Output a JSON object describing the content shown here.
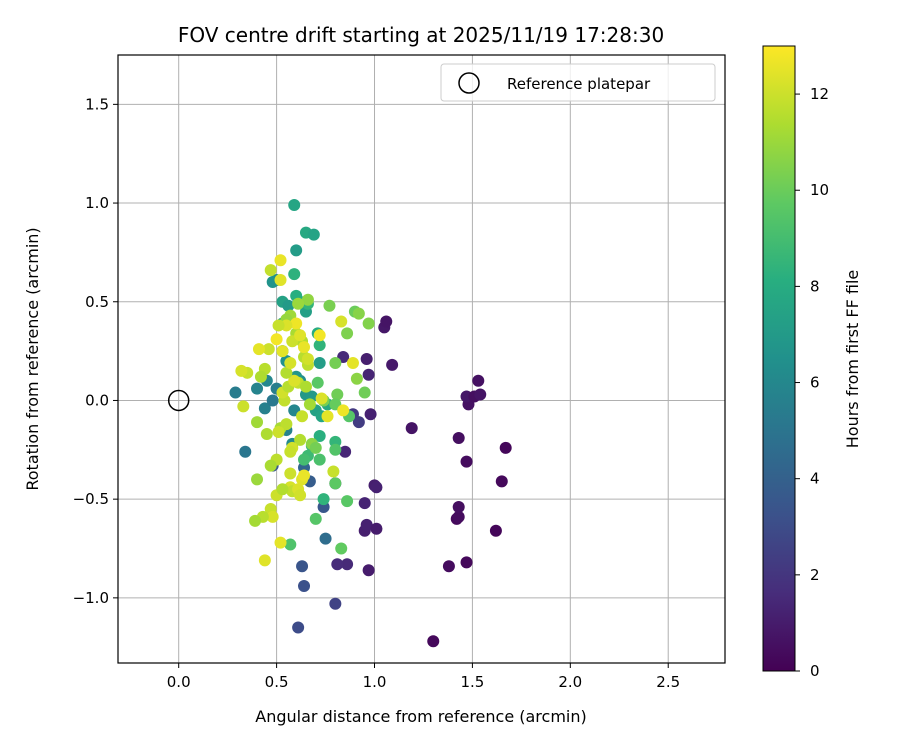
{
  "chart_data": {
    "type": "scatter",
    "title": "FOV centre drift starting at 2025/11/19 17:28:30",
    "xlabel": "Angular distance from reference (arcmin)",
    "ylabel": "Rotation from reference (arcmin)",
    "xlim": [
      -0.31,
      2.79
    ],
    "ylim": [
      -1.33,
      1.75
    ],
    "xticks": [
      0.0,
      0.5,
      1.0,
      1.5,
      2.0,
      2.5
    ],
    "xtick_labels": [
      "0.0",
      "0.5",
      "1.0",
      "1.5",
      "2.0",
      "2.5"
    ],
    "yticks": [
      -1.0,
      -0.5,
      0.0,
      0.5,
      1.0,
      1.5
    ],
    "ytick_labels": [
      "−1.0",
      "−0.5",
      "0.0",
      "0.5",
      "1.0",
      "1.5"
    ],
    "grid": true,
    "legend": {
      "position": "top-right",
      "entries": [
        "Reference platepar"
      ]
    },
    "reference_point": {
      "x": 0.0,
      "y": 0.0,
      "label": "Reference platepar"
    },
    "colorbar": {
      "label": "Hours from first FF file",
      "range": [
        0,
        13
      ],
      "ticks": [
        0,
        2,
        4,
        6,
        8,
        10,
        12
      ],
      "tick_labels": [
        "0",
        "2",
        "4",
        "6",
        "8",
        "10",
        "12"
      ],
      "colormap": "viridis"
    },
    "points": [
      {
        "x": 1.3,
        "y": -1.22,
        "h": 0.3
      },
      {
        "x": 1.38,
        "y": -0.84,
        "h": 0.4
      },
      {
        "x": 1.47,
        "y": -0.82,
        "h": 0.3
      },
      {
        "x": 1.62,
        "y": -0.66,
        "h": 0.2
      },
      {
        "x": 1.42,
        "y": -0.6,
        "h": 0.3
      },
      {
        "x": 1.43,
        "y": -0.59,
        "h": 0.4
      },
      {
        "x": 1.43,
        "y": -0.54,
        "h": 0.5
      },
      {
        "x": 1.65,
        "y": -0.41,
        "h": 0.3
      },
      {
        "x": 1.67,
        "y": -0.24,
        "h": 0.2
      },
      {
        "x": 1.47,
        "y": -0.31,
        "h": 0.4
      },
      {
        "x": 1.43,
        "y": -0.19,
        "h": 0.5
      },
      {
        "x": 1.19,
        "y": -0.14,
        "h": 0.7
      },
      {
        "x": 1.48,
        "y": -0.02,
        "h": 0.6
      },
      {
        "x": 1.47,
        "y": 0.02,
        "h": 0.8
      },
      {
        "x": 1.51,
        "y": 0.02,
        "h": 0.5
      },
      {
        "x": 1.54,
        "y": 0.03,
        "h": 0.7
      },
      {
        "x": 1.53,
        "y": 0.1,
        "h": 0.6
      },
      {
        "x": 1.09,
        "y": 0.18,
        "h": 0.9
      },
      {
        "x": 1.05,
        "y": 0.37,
        "h": 0.8
      },
      {
        "x": 1.06,
        "y": 0.4,
        "h": 0.7
      },
      {
        "x": 0.97,
        "y": -0.86,
        "h": 1.0
      },
      {
        "x": 0.95,
        "y": -0.66,
        "h": 1.1
      },
      {
        "x": 0.96,
        "y": -0.63,
        "h": 1.2
      },
      {
        "x": 1.01,
        "y": -0.65,
        "h": 1.0
      },
      {
        "x": 1.0,
        "y": -0.43,
        "h": 1.1
      },
      {
        "x": 1.01,
        "y": -0.44,
        "h": 1.2
      },
      {
        "x": 0.95,
        "y": -0.52,
        "h": 1.3
      },
      {
        "x": 0.98,
        "y": -0.07,
        "h": 1.2
      },
      {
        "x": 0.96,
        "y": 0.21,
        "h": 1.1
      },
      {
        "x": 0.97,
        "y": 0.13,
        "h": 1.3
      },
      {
        "x": 0.86,
        "y": -0.83,
        "h": 1.5
      },
      {
        "x": 0.81,
        "y": -0.83,
        "h": 1.6
      },
      {
        "x": 0.85,
        "y": -0.26,
        "h": 1.4
      },
      {
        "x": 0.84,
        "y": 0.22,
        "h": 1.5
      },
      {
        "x": 0.8,
        "y": -0.42,
        "h": 2.0
      },
      {
        "x": 0.89,
        "y": -0.07,
        "h": 2.1
      },
      {
        "x": 0.92,
        "y": -0.11,
        "h": 2.3
      },
      {
        "x": 0.8,
        "y": -1.03,
        "h": 2.6
      },
      {
        "x": 0.61,
        "y": -1.15,
        "h": 3.0
      },
      {
        "x": 0.64,
        "y": -0.94,
        "h": 3.2
      },
      {
        "x": 0.63,
        "y": -0.84,
        "h": 3.4
      },
      {
        "x": 0.75,
        "y": -0.7,
        "h": 4.6
      },
      {
        "x": 0.67,
        "y": -0.41,
        "h": 3.8
      },
      {
        "x": 0.74,
        "y": -0.54,
        "h": 3.5
      },
      {
        "x": 0.64,
        "y": -0.34,
        "h": 4.2
      },
      {
        "x": 0.48,
        "y": -0.33,
        "h": 3.6
      },
      {
        "x": 0.34,
        "y": -0.26,
        "h": 5.1
      },
      {
        "x": 0.29,
        "y": 0.04,
        "h": 5.4
      },
      {
        "x": 0.4,
        "y": 0.06,
        "h": 5.8
      },
      {
        "x": 0.44,
        "y": -0.04,
        "h": 5.6
      },
      {
        "x": 0.45,
        "y": 0.1,
        "h": 6.0
      },
      {
        "x": 0.5,
        "y": 0.06,
        "h": 5.5
      },
      {
        "x": 0.48,
        "y": 0.0,
        "h": 5.2
      },
      {
        "x": 0.55,
        "y": -0.15,
        "h": 5.7
      },
      {
        "x": 0.58,
        "y": -0.22,
        "h": 6.1
      },
      {
        "x": 0.59,
        "y": -0.05,
        "h": 5.9
      },
      {
        "x": 0.62,
        "y": 0.1,
        "h": 6.3
      },
      {
        "x": 0.55,
        "y": 0.2,
        "h": 6.5
      },
      {
        "x": 0.53,
        "y": 0.25,
        "h": 6.2
      },
      {
        "x": 0.5,
        "y": 0.61,
        "h": 6.4
      },
      {
        "x": 0.48,
        "y": 0.6,
        "h": 6.6
      },
      {
        "x": 0.6,
        "y": 0.76,
        "h": 7.1
      },
      {
        "x": 0.59,
        "y": 0.99,
        "h": 7.6
      },
      {
        "x": 0.65,
        "y": 0.85,
        "h": 7.8
      },
      {
        "x": 0.69,
        "y": 0.84,
        "h": 7.5
      },
      {
        "x": 0.59,
        "y": 0.64,
        "h": 8.3
      },
      {
        "x": 0.53,
        "y": 0.5,
        "h": 7.4
      },
      {
        "x": 0.56,
        "y": 0.48,
        "h": 7.0
      },
      {
        "x": 0.62,
        "y": 0.5,
        "h": 7.9
      },
      {
        "x": 0.6,
        "y": 0.53,
        "h": 8.1
      },
      {
        "x": 0.65,
        "y": 0.45,
        "h": 7.3
      },
      {
        "x": 0.66,
        "y": 0.49,
        "h": 8.5
      },
      {
        "x": 0.53,
        "y": 0.39,
        "h": 7.7
      },
      {
        "x": 0.71,
        "y": 0.34,
        "h": 8.0
      },
      {
        "x": 0.72,
        "y": 0.28,
        "h": 8.4
      },
      {
        "x": 0.72,
        "y": 0.19,
        "h": 7.2
      },
      {
        "x": 0.6,
        "y": 0.12,
        "h": 6.8
      },
      {
        "x": 0.65,
        "y": 0.03,
        "h": 6.9
      },
      {
        "x": 0.68,
        "y": 0.02,
        "h": 7.0
      },
      {
        "x": 0.7,
        "y": -0.05,
        "h": 7.4
      },
      {
        "x": 0.73,
        "y": -0.08,
        "h": 7.6
      },
      {
        "x": 0.76,
        "y": -0.02,
        "h": 7.8
      },
      {
        "x": 0.72,
        "y": -0.18,
        "h": 8.2
      },
      {
        "x": 0.68,
        "y": -0.23,
        "h": 8.6
      },
      {
        "x": 0.66,
        "y": -0.28,
        "h": 8.8
      },
      {
        "x": 0.64,
        "y": -0.3,
        "h": 9.0
      },
      {
        "x": 0.72,
        "y": -0.3,
        "h": 9.2
      },
      {
        "x": 0.8,
        "y": -0.21,
        "h": 8.5
      },
      {
        "x": 0.8,
        "y": -0.25,
        "h": 9.4
      },
      {
        "x": 0.74,
        "y": -0.5,
        "h": 8.4
      },
      {
        "x": 0.7,
        "y": -0.6,
        "h": 9.5
      },
      {
        "x": 0.57,
        "y": -0.73,
        "h": 9.3
      },
      {
        "x": 0.86,
        "y": -0.51,
        "h": 9.6
      },
      {
        "x": 0.83,
        "y": -0.75,
        "h": 9.8
      },
      {
        "x": 0.8,
        "y": -0.42,
        "h": 9.7
      },
      {
        "x": 0.71,
        "y": 0.09,
        "h": 9.6
      },
      {
        "x": 0.74,
        "y": 0.0,
        "h": 10.3
      },
      {
        "x": 0.81,
        "y": 0.03,
        "h": 10.1
      },
      {
        "x": 0.8,
        "y": -0.02,
        "h": 9.9
      },
      {
        "x": 0.87,
        "y": -0.08,
        "h": 9.5
      },
      {
        "x": 0.8,
        "y": 0.19,
        "h": 10.2
      },
      {
        "x": 0.86,
        "y": 0.34,
        "h": 10.4
      },
      {
        "x": 0.9,
        "y": 0.45,
        "h": 10.0
      },
      {
        "x": 0.92,
        "y": 0.44,
        "h": 10.6
      },
      {
        "x": 0.97,
        "y": 0.39,
        "h": 10.5
      },
      {
        "x": 0.91,
        "y": 0.11,
        "h": 10.7
      },
      {
        "x": 0.95,
        "y": 0.04,
        "h": 10.1
      },
      {
        "x": 0.77,
        "y": 0.48,
        "h": 10.3
      },
      {
        "x": 0.66,
        "y": 0.51,
        "h": 10.8
      },
      {
        "x": 0.61,
        "y": 0.49,
        "h": 11.0
      },
      {
        "x": 0.57,
        "y": 0.43,
        "h": 11.1
      },
      {
        "x": 0.55,
        "y": 0.41,
        "h": 10.9
      },
      {
        "x": 0.6,
        "y": 0.34,
        "h": 11.3
      },
      {
        "x": 0.63,
        "y": 0.3,
        "h": 11.5
      },
      {
        "x": 0.64,
        "y": 0.22,
        "h": 11.6
      },
      {
        "x": 0.66,
        "y": 0.18,
        "h": 11.7
      },
      {
        "x": 0.61,
        "y": 0.09,
        "h": 11.8
      },
      {
        "x": 0.65,
        "y": 0.07,
        "h": 11.4
      },
      {
        "x": 0.67,
        "y": -0.02,
        "h": 11.2
      },
      {
        "x": 0.63,
        "y": -0.08,
        "h": 11.9
      },
      {
        "x": 0.62,
        "y": -0.2,
        "h": 11.5
      },
      {
        "x": 0.58,
        "y": -0.24,
        "h": 12.1
      },
      {
        "x": 0.57,
        "y": -0.26,
        "h": 11.9
      },
      {
        "x": 0.5,
        "y": -0.3,
        "h": 11.7
      },
      {
        "x": 0.47,
        "y": -0.33,
        "h": 11.3
      },
      {
        "x": 0.57,
        "y": -0.37,
        "h": 12.0
      },
      {
        "x": 0.57,
        "y": -0.44,
        "h": 12.2
      },
      {
        "x": 0.58,
        "y": -0.46,
        "h": 11.8
      },
      {
        "x": 0.61,
        "y": -0.45,
        "h": 12.3
      },
      {
        "x": 0.62,
        "y": -0.48,
        "h": 12.1
      },
      {
        "x": 0.63,
        "y": -0.4,
        "h": 12.4
      },
      {
        "x": 0.64,
        "y": -0.38,
        "h": 12.6
      },
      {
        "x": 0.5,
        "y": -0.48,
        "h": 12.0
      },
      {
        "x": 0.47,
        "y": -0.55,
        "h": 11.9
      },
      {
        "x": 0.48,
        "y": -0.59,
        "h": 12.2
      },
      {
        "x": 0.43,
        "y": -0.59,
        "h": 11.6
      },
      {
        "x": 0.39,
        "y": -0.61,
        "h": 11.2
      },
      {
        "x": 0.44,
        "y": -0.81,
        "h": 12.4
      },
      {
        "x": 0.52,
        "y": -0.72,
        "h": 12.5
      },
      {
        "x": 0.4,
        "y": -0.4,
        "h": 11.0
      },
      {
        "x": 0.45,
        "y": -0.17,
        "h": 11.4
      },
      {
        "x": 0.4,
        "y": -0.11,
        "h": 11.1
      },
      {
        "x": 0.52,
        "y": -0.14,
        "h": 11.3
      },
      {
        "x": 0.55,
        "y": -0.12,
        "h": 11.7
      },
      {
        "x": 0.51,
        "y": -0.16,
        "h": 12.0
      },
      {
        "x": 0.54,
        "y": 0.0,
        "h": 11.8
      },
      {
        "x": 0.53,
        "y": 0.04,
        "h": 12.1
      },
      {
        "x": 0.56,
        "y": 0.07,
        "h": 11.6
      },
      {
        "x": 0.59,
        "y": 0.1,
        "h": 12.3
      },
      {
        "x": 0.55,
        "y": 0.14,
        "h": 11.5
      },
      {
        "x": 0.57,
        "y": 0.19,
        "h": 12.2
      },
      {
        "x": 0.53,
        "y": 0.25,
        "h": 12.5
      },
      {
        "x": 0.58,
        "y": 0.3,
        "h": 12.0
      },
      {
        "x": 0.62,
        "y": 0.33,
        "h": 12.4
      },
      {
        "x": 0.64,
        "y": 0.27,
        "h": 12.6
      },
      {
        "x": 0.66,
        "y": 0.21,
        "h": 12.1
      },
      {
        "x": 0.6,
        "y": 0.39,
        "h": 12.7
      },
      {
        "x": 0.55,
        "y": 0.38,
        "h": 12.3
      },
      {
        "x": 0.51,
        "y": 0.38,
        "h": 11.9
      },
      {
        "x": 0.5,
        "y": 0.31,
        "h": 12.8
      },
      {
        "x": 0.46,
        "y": 0.26,
        "h": 12.0
      },
      {
        "x": 0.41,
        "y": 0.26,
        "h": 12.5
      },
      {
        "x": 0.44,
        "y": 0.16,
        "h": 11.6
      },
      {
        "x": 0.42,
        "y": 0.12,
        "h": 11.4
      },
      {
        "x": 0.35,
        "y": 0.14,
        "h": 11.9
      },
      {
        "x": 0.32,
        "y": 0.15,
        "h": 12.2
      },
      {
        "x": 0.33,
        "y": -0.03,
        "h": 12.0
      },
      {
        "x": 0.52,
        "y": 0.71,
        "h": 12.6
      },
      {
        "x": 0.47,
        "y": 0.66,
        "h": 11.8
      },
      {
        "x": 0.52,
        "y": 0.61,
        "h": 12.4
      },
      {
        "x": 0.73,
        "y": 0.01,
        "h": 12.3
      },
      {
        "x": 0.76,
        "y": -0.08,
        "h": 12.5
      },
      {
        "x": 0.84,
        "y": -0.05,
        "h": 12.7
      },
      {
        "x": 0.79,
        "y": -0.36,
        "h": 11.9
      },
      {
        "x": 0.83,
        "y": 0.4,
        "h": 12.2
      },
      {
        "x": 0.72,
        "y": 0.33,
        "h": 12.8
      },
      {
        "x": 0.89,
        "y": 0.19,
        "h": 12.5
      },
      {
        "x": 0.53,
        "y": -0.45,
        "h": 11.5
      },
      {
        "x": 0.68,
        "y": -0.22,
        "h": 10.7
      },
      {
        "x": 0.7,
        "y": -0.24,
        "h": 10.2
      }
    ]
  }
}
